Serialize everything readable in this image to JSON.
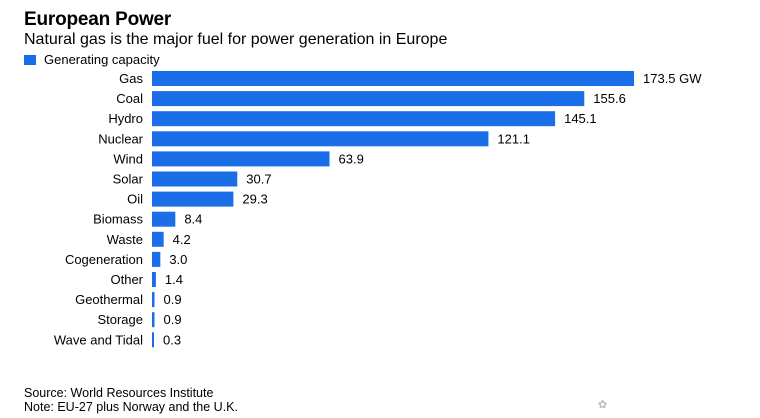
{
  "title": "European Power",
  "subtitle": "Natural gas is the major fuel for power generation in Europe",
  "legend": {
    "label": "Generating capacity",
    "color": "#1a6ee8"
  },
  "chart_data": {
    "type": "bar",
    "orientation": "horizontal",
    "categories": [
      "Gas",
      "Coal",
      "Hydro",
      "Nuclear",
      "Wind",
      "Solar",
      "Oil",
      "Biomass",
      "Waste",
      "Cogeneration",
      "Other",
      "Geothermal",
      "Storage",
      "Wave and Tidal"
    ],
    "series": [
      {
        "name": "Generating capacity",
        "color": "#1a6ee8",
        "values": [
          173.5,
          155.6,
          145.1,
          121.1,
          63.9,
          30.7,
          29.3,
          8.4,
          4.2,
          3.0,
          1.4,
          0.9,
          0.9,
          0.3
        ]
      }
    ],
    "value_labels": [
      "173.5 GW",
      "155.6",
      "145.1",
      "121.1",
      "63.9",
      "30.7",
      "29.3",
      "8.4",
      "4.2",
      "3.0",
      "1.4",
      "0.9",
      "0.9",
      "0.3"
    ],
    "xlim": [
      0,
      173.5
    ],
    "grid": false,
    "legend_position": "top-left"
  },
  "footer": {
    "source": "Source: World Resources Institute",
    "note": "Note: EU-27 plus Norway and the U.K."
  }
}
